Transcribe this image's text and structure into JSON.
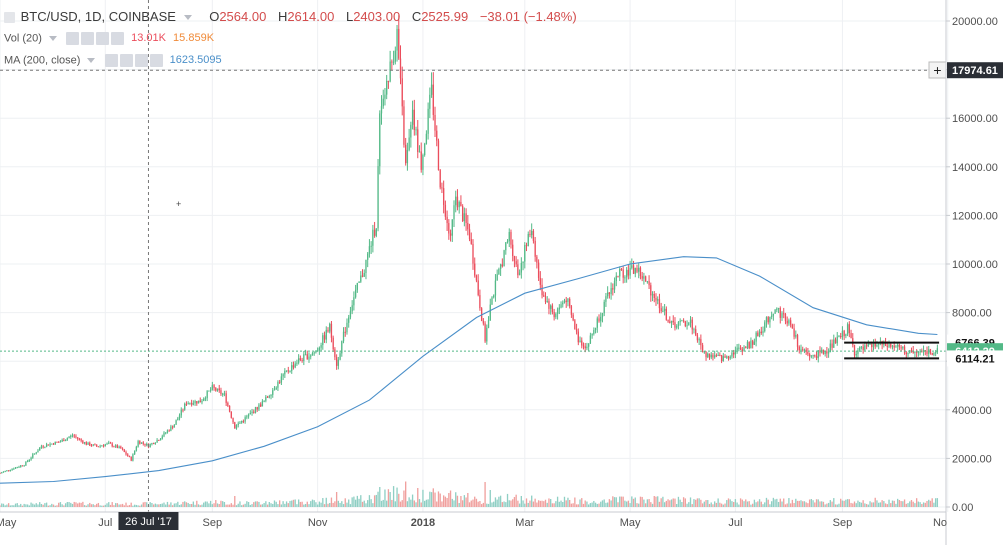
{
  "header": {
    "symbol": "BTC/USD, 1D, COINBASE",
    "open_key": "O",
    "open": "2564.00",
    "high_key": "H",
    "high": "2614.00",
    "low_key": "L",
    "low": "2403.00",
    "close_key": "C",
    "close": "2525.99",
    "change": "−38.01 (−1.48%)"
  },
  "indicators": {
    "vol_label": "Vol (20)",
    "vol_value": "13.01K",
    "vol_ma": "15.859K",
    "ma_label": "MA (200, close)",
    "ma_value": "1623.5095"
  },
  "colors": {
    "up": "#53b987",
    "down": "#eb4d5c",
    "vol_up": "#8fcfc4",
    "vol_down": "#f0a09e",
    "ma": "#4a8fc9",
    "grid": "#eef0f3",
    "axis_text": "#4f4f4f",
    "current_price": "#53b987",
    "support": "#111111"
  },
  "chart_data": {
    "type": "candlestick",
    "title": "BTC/USD, 1D, COINBASE",
    "ylim": [
      0,
      20800
    ],
    "y_ticks": [
      "20000.00",
      "18000.00",
      "16000.00",
      "14000.00",
      "12000.00",
      "10000.00",
      "8000.00",
      "6000.00",
      "4000.00",
      "2000.00",
      "0.00"
    ],
    "x_ticks": [
      "May",
      "Jul",
      "Sep",
      "Nov",
      "2018",
      "Mar",
      "May",
      "Jul",
      "Sep",
      "No"
    ],
    "x_range": [
      "2017-05-01",
      "2018-10-31"
    ],
    "crosshair": {
      "date_label": "26 Jul '17",
      "price_label": "17974.61",
      "price": 17974.61
    },
    "price_labels": {
      "current": {
        "text": "6412.29",
        "value": 6412.29
      },
      "level_high": {
        "text": "6766.39",
        "value": 6766.39
      },
      "level_low": {
        "text": "6114.21",
        "value": 6114.21
      }
    },
    "price_path": [
      [
        "2017-05-01",
        1400
      ],
      [
        "2017-05-15",
        1750
      ],
      [
        "2017-05-25",
        2500
      ],
      [
        "2017-06-05",
        2700
      ],
      [
        "2017-06-12",
        2950
      ],
      [
        "2017-06-20",
        2600
      ],
      [
        "2017-06-26",
        2500
      ],
      [
        "2017-07-03",
        2600
      ],
      [
        "2017-07-10",
        2400
      ],
      [
        "2017-07-16",
        1950
      ],
      [
        "2017-07-20",
        2700
      ],
      [
        "2017-07-26",
        2525
      ],
      [
        "2017-08-01",
        2800
      ],
      [
        "2017-08-10",
        3400
      ],
      [
        "2017-08-17",
        4300
      ],
      [
        "2017-08-25",
        4350
      ],
      [
        "2017-09-01",
        4900
      ],
      [
        "2017-09-08",
        4600
      ],
      [
        "2017-09-14",
        3300
      ],
      [
        "2017-09-21",
        3700
      ],
      [
        "2017-10-01",
        4350
      ],
      [
        "2017-10-12",
        5400
      ],
      [
        "2017-10-20",
        6000
      ],
      [
        "2017-10-31",
        6400
      ],
      [
        "2017-11-08",
        7400
      ],
      [
        "2017-11-12",
        5900
      ],
      [
        "2017-11-20",
        8200
      ],
      [
        "2017-11-28",
        9800
      ],
      [
        "2017-12-05",
        11700
      ],
      [
        "2017-12-07",
        16000
      ],
      [
        "2017-12-11",
        17200
      ],
      [
        "2017-12-17",
        19500
      ],
      [
        "2017-12-22",
        14000
      ],
      [
        "2017-12-26",
        16000
      ],
      [
        "2017-12-31",
        14100
      ],
      [
        "2018-01-06",
        17100
      ],
      [
        "2018-01-11",
        13400
      ],
      [
        "2018-01-17",
        11100
      ],
      [
        "2018-01-20",
        12800
      ],
      [
        "2018-01-28",
        11200
      ],
      [
        "2018-02-02",
        8800
      ],
      [
        "2018-02-06",
        6900
      ],
      [
        "2018-02-10",
        8600
      ],
      [
        "2018-02-20",
        11200
      ],
      [
        "2018-02-25",
        9600
      ],
      [
        "2018-03-05",
        11500
      ],
      [
        "2018-03-10",
        9000
      ],
      [
        "2018-03-18",
        7900
      ],
      [
        "2018-03-25",
        8600
      ],
      [
        "2018-04-01",
        6900
      ],
      [
        "2018-04-06",
        6600
      ],
      [
        "2018-04-14",
        8000
      ],
      [
        "2018-04-24",
        9600
      ],
      [
        "2018-05-05",
        9800
      ],
      [
        "2018-05-15",
        8700
      ],
      [
        "2018-05-25",
        7500
      ],
      [
        "2018-06-05",
        7600
      ],
      [
        "2018-06-13",
        6300
      ],
      [
        "2018-06-24",
        6100
      ],
      [
        "2018-06-30",
        6400
      ],
      [
        "2018-07-10",
        6700
      ],
      [
        "2018-07-17",
        7400
      ],
      [
        "2018-07-24",
        8200
      ],
      [
        "2018-08-01",
        7600
      ],
      [
        "2018-08-08",
        6400
      ],
      [
        "2018-08-14",
        6200
      ],
      [
        "2018-08-22",
        6400
      ],
      [
        "2018-08-31",
        7000
      ],
      [
        "2018-09-04",
        7350
      ],
      [
        "2018-09-08",
        6400
      ],
      [
        "2018-09-14",
        6500
      ],
      [
        "2018-09-21",
        6700
      ],
      [
        "2018-10-01",
        6600
      ],
      [
        "2018-10-11",
        6300
      ],
      [
        "2018-10-20",
        6420
      ],
      [
        "2018-10-26",
        6412
      ]
    ],
    "ma200_path": [
      [
        "2017-05-01",
        980
      ],
      [
        "2017-06-01",
        1050
      ],
      [
        "2017-07-01",
        1250
      ],
      [
        "2017-08-01",
        1500
      ],
      [
        "2017-09-01",
        1900
      ],
      [
        "2017-10-01",
        2500
      ],
      [
        "2017-11-01",
        3300
      ],
      [
        "2017-12-01",
        4400
      ],
      [
        "2018-01-01",
        6200
      ],
      [
        "2018-02-01",
        7800
      ],
      [
        "2018-03-01",
        8800
      ],
      [
        "2018-04-01",
        9400
      ],
      [
        "2018-05-01",
        10000
      ],
      [
        "2018-06-01",
        10300
      ],
      [
        "2018-06-20",
        10250
      ],
      [
        "2018-07-15",
        9500
      ],
      [
        "2018-08-15",
        8200
      ],
      [
        "2018-09-15",
        7500
      ],
      [
        "2018-10-15",
        7150
      ],
      [
        "2018-10-26",
        7100
      ]
    ],
    "support_box": {
      "start": "2018-09-02",
      "end": "2018-10-27",
      "high": 6766.39,
      "low": 6114.21
    },
    "volume": {
      "ylim": [
        0,
        20000
      ],
      "spikes": [
        [
          "2017-09-14",
          2200
        ],
        [
          "2017-11-12",
          3000
        ],
        [
          "2017-12-07",
          4000
        ],
        [
          "2017-12-10",
          3500
        ],
        [
          "2017-12-13",
          3000
        ],
        [
          "2017-12-22",
          5100
        ],
        [
          "2017-12-29",
          3800
        ],
        [
          "2018-01-17",
          3300
        ],
        [
          "2018-02-06",
          5000
        ],
        [
          "2018-02-09",
          3400
        ],
        [
          "2018-08-14",
          1600
        ],
        [
          "2018-10-11",
          1400
        ]
      ]
    }
  }
}
